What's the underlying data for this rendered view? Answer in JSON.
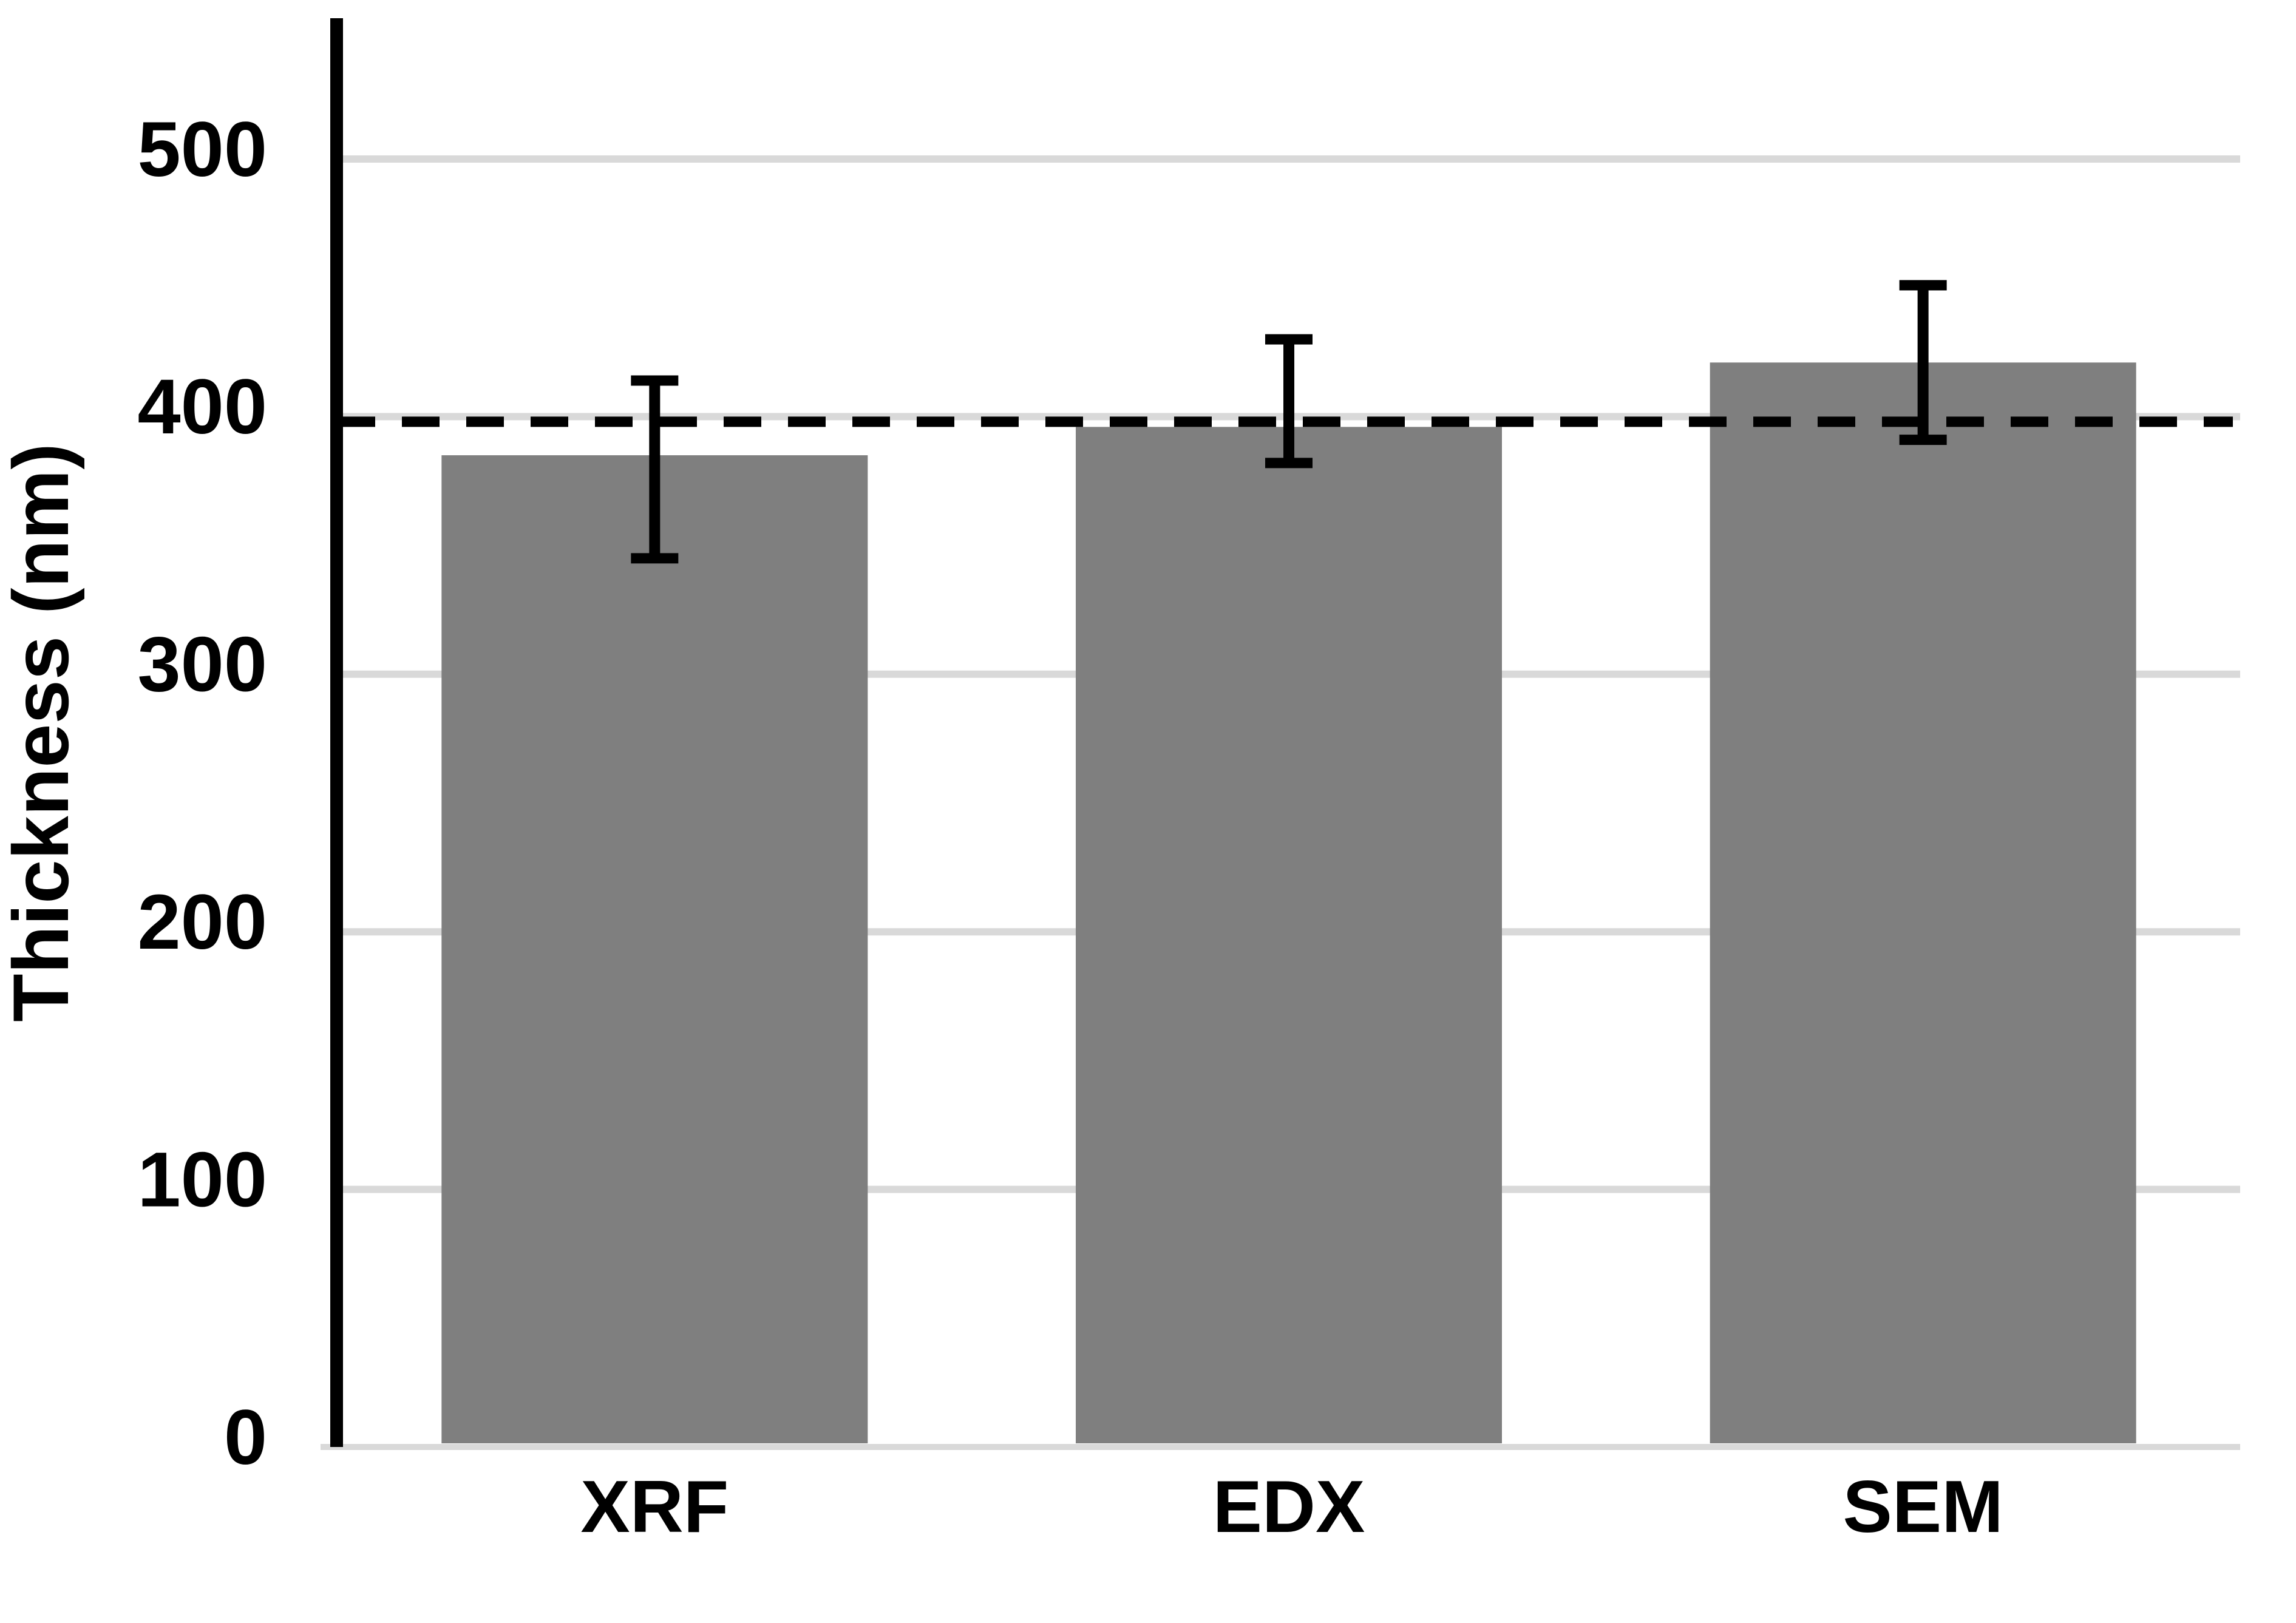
{
  "chart_data": {
    "type": "bar",
    "title": "",
    "xlabel": "",
    "ylabel": "Thickness (nm)",
    "categories": [
      "XRF",
      "EDX",
      "SEM"
    ],
    "values": [
      385,
      396,
      421
    ],
    "error_low": [
      345,
      382,
      391
    ],
    "error_high": [
      414,
      430,
      451
    ],
    "reference_line": {
      "value": 398,
      "style": "dashed"
    },
    "yticks": [
      0,
      100,
      200,
      300,
      400,
      500
    ],
    "ylim": [
      0,
      555
    ],
    "grid": true,
    "legend": false,
    "colors": {
      "bar": "#7f7f7f",
      "gridline": "#d9d9d9",
      "axis": "#000000",
      "reference": "#000000",
      "error": "#000000",
      "text": "#000000",
      "background": "#ffffff"
    }
  }
}
